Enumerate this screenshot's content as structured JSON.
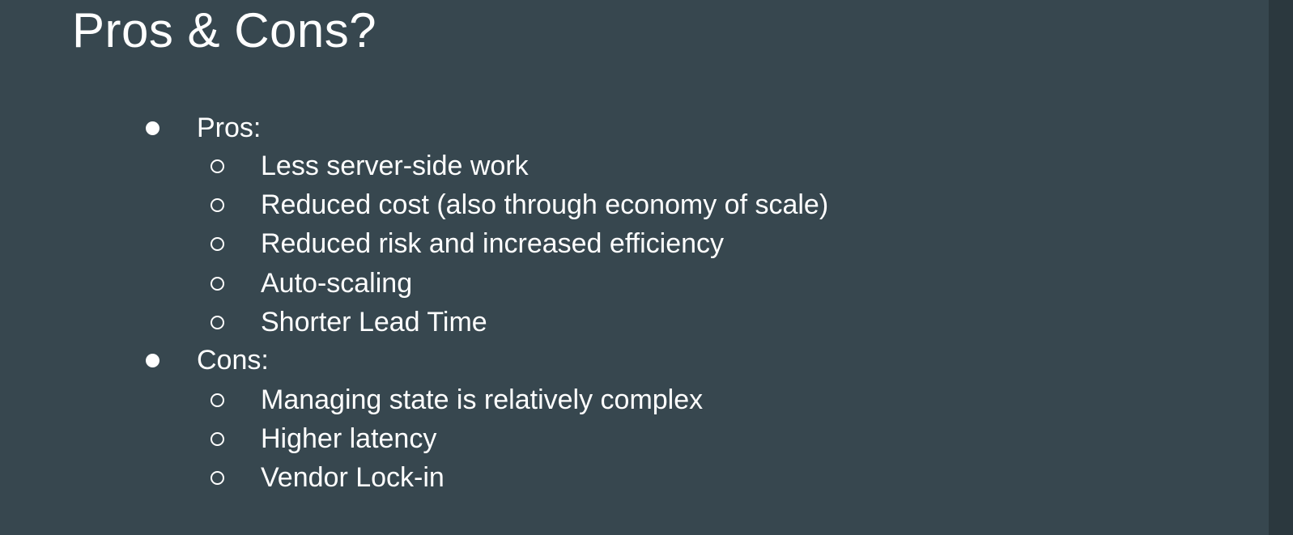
{
  "slide": {
    "title": "Pros & Cons?",
    "sections": [
      {
        "label": "Pros:",
        "items": [
          "Less server-side work",
          "Reduced cost (also through economy of scale)",
          "Reduced risk and increased efficiency",
          "Auto-scaling",
          "Shorter Lead Time"
        ]
      },
      {
        "label": "Cons:",
        "items": [
          "Managing state is relatively complex",
          "Higher latency",
          "Vendor Lock-in"
        ]
      }
    ]
  },
  "colors": {
    "background": "#37474f",
    "text": "#ffffff"
  },
  "icons": {
    "level1_bullet": "filled-disc",
    "level2_bullet": "hollow-circle"
  }
}
